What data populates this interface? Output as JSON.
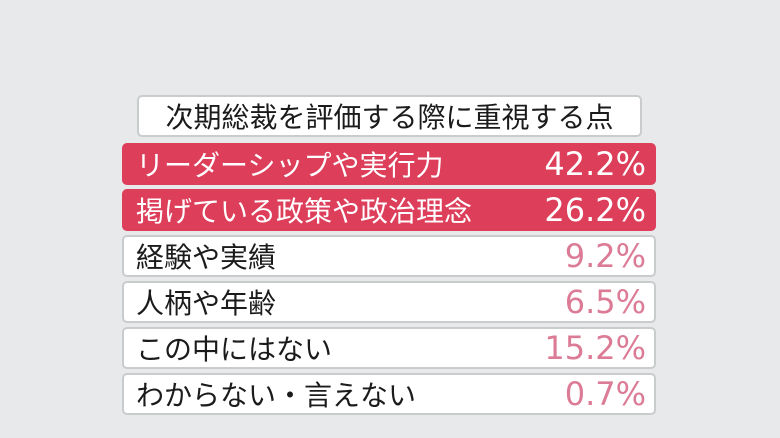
{
  "chart_data": {
    "type": "table",
    "title": "次期総裁を評価する際に重視する点",
    "categories": [
      "リーダーシップや実行力",
      "掲げている政策や政治理念",
      "経験や実績",
      "人柄や年齢",
      "この中にはない",
      "わからない・言えない"
    ],
    "values": [
      42.2,
      26.2,
      9.2,
      6.5,
      15.2,
      0.7
    ],
    "value_labels": [
      "42.2%",
      "26.2%",
      "9.2%",
      "6.5%",
      "15.2%",
      "0.7%"
    ],
    "highlighted": [
      true,
      true,
      false,
      false,
      false,
      false
    ],
    "colors": {
      "highlight": "#dd3e5a",
      "value_text": "#dc7b95",
      "background": "#e7e9ea"
    }
  }
}
